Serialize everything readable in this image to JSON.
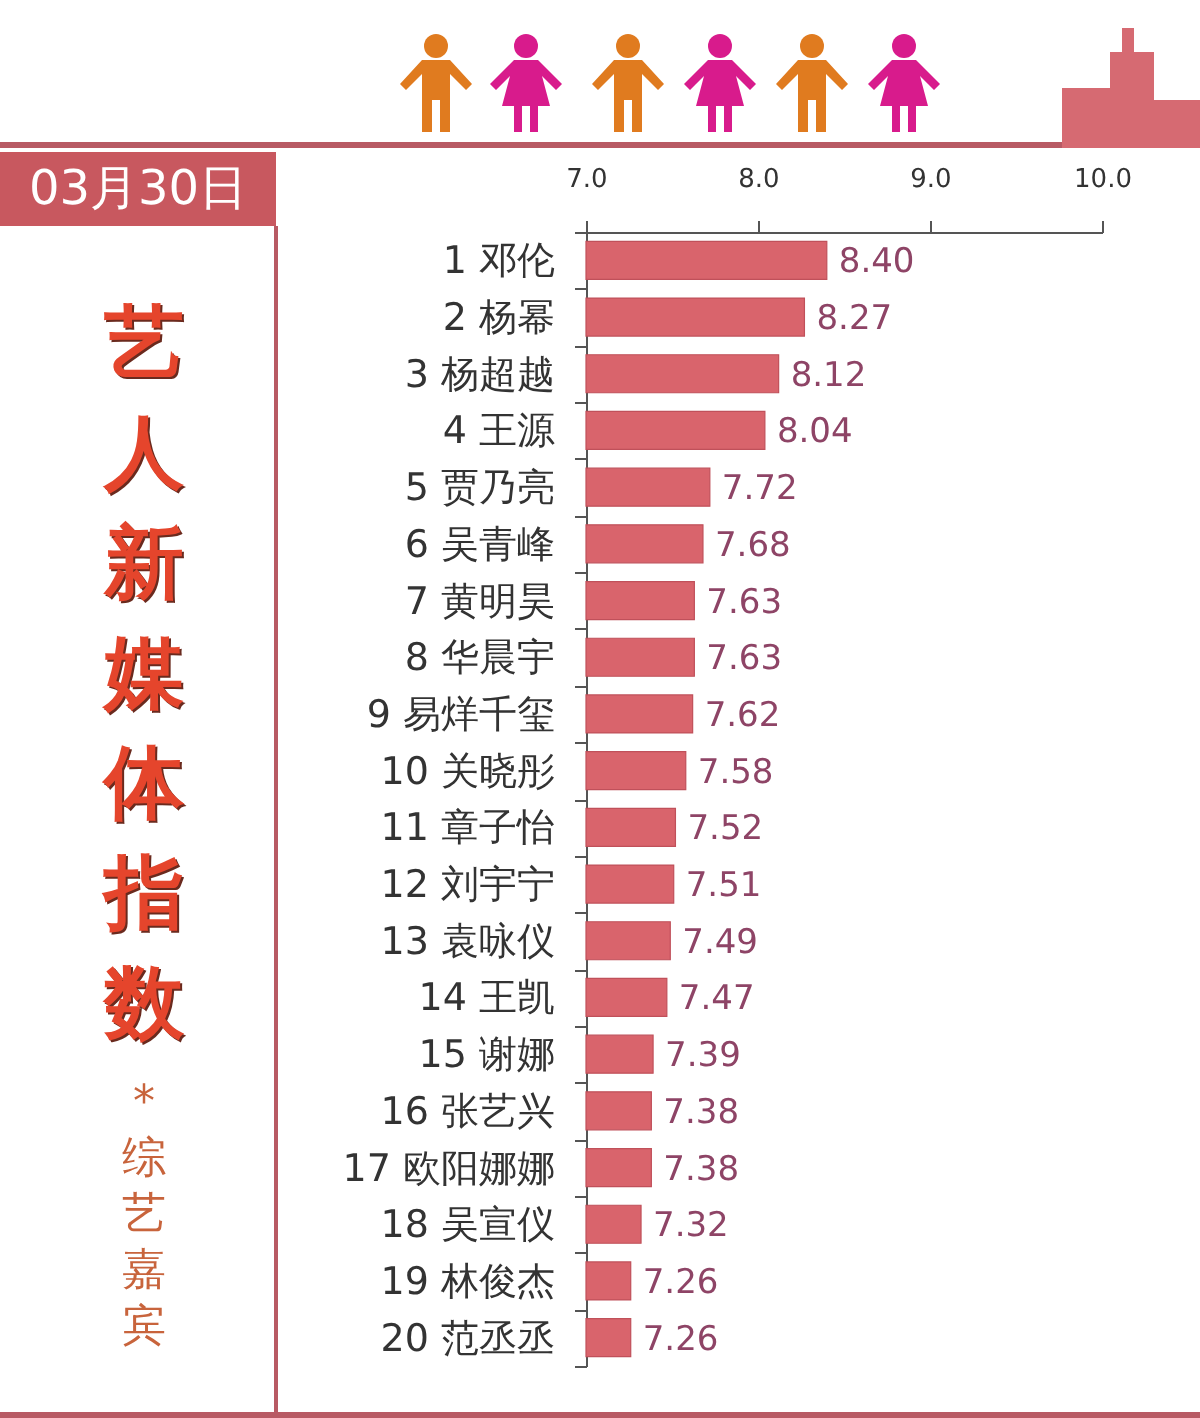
{
  "chart_data": {
    "type": "bar",
    "orientation": "horizontal",
    "title": "艺人新媒体指数",
    "subtitle": "03月30日",
    "annotations": [
      "* 综艺嘉宾"
    ],
    "categories": [
      "1 邓伦",
      "2 杨幂",
      "3 杨超越",
      "4 王源",
      "5 贾乃亮",
      "6 吴青峰",
      "7 黄明昊",
      "8 华晨宇",
      "9 易烊千玺",
      "10 关晓彤",
      "11 章子怡",
      "12 刘宇宁",
      "13 袁咏仪",
      "14 王凯",
      "15 谢娜",
      "16 张艺兴",
      "17 欧阳娜娜",
      "18 吴宣仪",
      "19 林俊杰",
      "20 范丞丞"
    ],
    "values": [
      8.4,
      8.27,
      8.12,
      8.04,
      7.72,
      7.68,
      7.63,
      7.63,
      7.62,
      7.58,
      7.52,
      7.51,
      7.49,
      7.47,
      7.39,
      7.38,
      7.38,
      7.32,
      7.26,
      7.26
    ],
    "value_labels": [
      "8.40",
      "8.27",
      "8.12",
      "8.04",
      "7.72",
      "7.68",
      "7.63",
      "7.63",
      "7.62",
      "7.58",
      "7.52",
      "7.51",
      "7.49",
      "7.47",
      "7.39",
      "7.38",
      "7.38",
      "7.32",
      "7.26",
      "7.26"
    ],
    "color": "#d9646c",
    "xlim": [
      7,
      10
    ],
    "xticks": [
      {
        "value": 7,
        "label": "7.0"
      },
      {
        "value": 8,
        "label": "8.0"
      },
      {
        "value": 9,
        "label": "9.0"
      },
      {
        "value": 10,
        "label": "10.0"
      }
    ],
    "grid": false
  }
}
